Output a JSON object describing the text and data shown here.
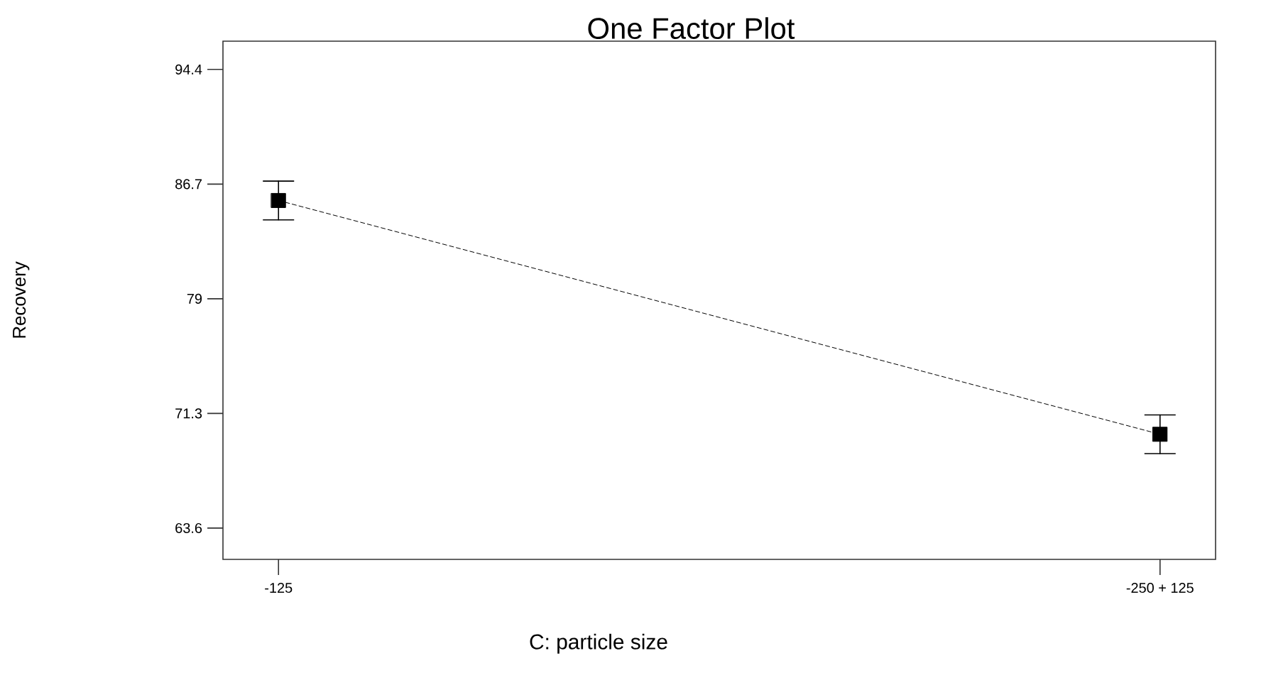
{
  "chart_data": {
    "type": "line",
    "title": "One Factor Plot",
    "xlabel": "C: particle size",
    "ylabel": "Recovery",
    "categories": [
      "-125",
      "-250 + 125"
    ],
    "values": [
      85.6,
      69.9
    ],
    "errors": [
      1.3,
      1.3
    ],
    "color": "#000000",
    "marker": "square",
    "line_style": "dashed",
    "ylim": [
      61.5,
      96.3
    ],
    "yticks": [
      63.6,
      71.3,
      79,
      86.7,
      94.4
    ]
  }
}
